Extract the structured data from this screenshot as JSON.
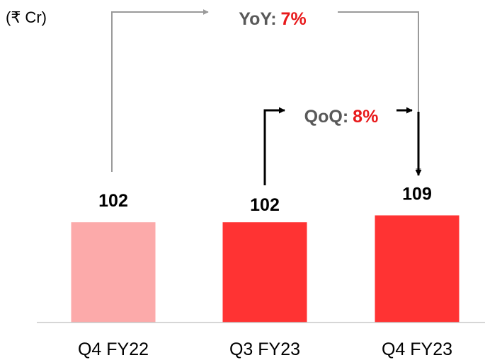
{
  "chart_data": {
    "type": "bar",
    "unit_label": "(₹ Cr)",
    "categories": [
      "Q4 FY22",
      "Q3 FY23",
      "Q4 FY23"
    ],
    "values": [
      102,
      102,
      109
    ],
    "value_labels": [
      "102",
      "102",
      "109"
    ],
    "bar_colors": [
      "#fcaaaa",
      "#ff3333",
      "#ff3333"
    ],
    "annotations": [
      {
        "label": "YoY:",
        "value": "7%",
        "from": "Q4 FY22",
        "to": "Q4 FY23"
      },
      {
        "label": "QoQ:",
        "value": "8%",
        "from": "Q3 FY23",
        "to": "Q4 FY23"
      }
    ],
    "colors": {
      "annotation_text": "#595959",
      "annotation_value": "#e8191b",
      "yoy_arrow": "#9a9a9a",
      "qoq_arrow": "#000000",
      "axis": "#c8c8c8"
    }
  }
}
